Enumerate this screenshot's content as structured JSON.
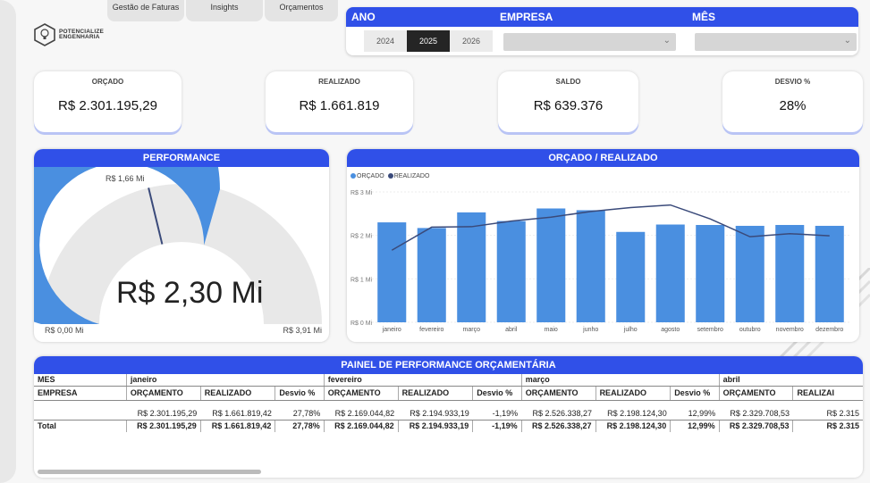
{
  "nav": {
    "tabs": [
      "Gestão de Faturas",
      "Insights",
      "Orçamentos"
    ]
  },
  "logo": {
    "line1": "POTENCIALIZE",
    "line2": "ENGENHARIA"
  },
  "filters": {
    "ano_label": "ANO",
    "empresa_label": "EMPRESA",
    "mes_label": "MÊS",
    "years": [
      "2024",
      "2025",
      "2026"
    ],
    "selected_year": "2025",
    "empresa_value": "",
    "mes_value": ""
  },
  "kpis": {
    "orcado": {
      "label": "ORÇADO",
      "value": "R$ 2.301.195,29"
    },
    "realizado": {
      "label": "REALIZADO",
      "value": "R$ 1.661.819"
    },
    "saldo": {
      "label": "SALDO",
      "value": "R$ 639.376"
    },
    "desvio": {
      "label": "DESVIO %",
      "value": "28%"
    }
  },
  "performance": {
    "title": "PERFORMANCE",
    "value_label": "R$ 2,30 Mi",
    "target_label": "R$ 1,66 Mi",
    "min_label": "R$ 0,00 Mi",
    "max_label": "R$ 3,91 Mi",
    "value": 2.3,
    "target": 1.66,
    "min": 0,
    "max": 3.91
  },
  "chart_data": {
    "type": "bar",
    "title": "ORÇADO / REALIZADO",
    "categories": [
      "janeiro",
      "fevereiro",
      "março",
      "abril",
      "maio",
      "junho",
      "julho",
      "agosto",
      "setembro",
      "outubro",
      "novembro",
      "dezembro"
    ],
    "series": [
      {
        "name": "ORÇADO",
        "kind": "bar",
        "color": "#4a8fe0",
        "values": [
          2.3,
          2.17,
          2.53,
          2.33,
          2.62,
          2.58,
          2.08,
          2.25,
          2.24,
          2.22,
          2.24,
          2.22
        ]
      },
      {
        "name": "REALIZADO",
        "kind": "line",
        "color": "#3a4a7a",
        "values": [
          1.66,
          2.19,
          2.2,
          2.33,
          2.42,
          2.55,
          2.64,
          2.7,
          2.38,
          1.97,
          2.04,
          1.99
        ]
      }
    ],
    "yticks": [
      "R$ 0 Mi",
      "R$ 1 Mi",
      "R$ 2 Mi",
      "R$ 3 Mi"
    ],
    "ylim": [
      0,
      3
    ],
    "legend": "top-left"
  },
  "table": {
    "title": "PAINEL DE PERFORMANCE ORÇAMENTÁRIA",
    "mes_label": "MES",
    "empresa_label": "EMPRESA",
    "total_label": "Total",
    "row_label": "",
    "col_headers": [
      "ORÇAMENTO",
      "REALIZADO",
      "Desvio %"
    ],
    "months": [
      {
        "name": "janeiro",
        "row": [
          "R$ 2.301.195,29",
          "R$ 1.661.819,42",
          "27,78%"
        ],
        "total": [
          "R$ 2.301.195,29",
          "R$ 1.661.819,42",
          "27,78%"
        ]
      },
      {
        "name": "fevereiro",
        "row": [
          "R$ 2.169.044,82",
          "R$ 2.194.933,19",
          "-1,19%"
        ],
        "total": [
          "R$ 2.169.044,82",
          "R$ 2.194.933,19",
          "-1,19%"
        ]
      },
      {
        "name": "março",
        "row": [
          "R$ 2.526.338,27",
          "R$ 2.198.124,30",
          "12,99%"
        ],
        "total": [
          "R$ 2.526.338,27",
          "R$ 2.198.124,30",
          "12,99%"
        ]
      },
      {
        "name": "abril",
        "row": [
          "R$ 2.329.708,53",
          "R$ 2.315",
          ""
        ],
        "total": [
          "R$ 2.329.708,53",
          "R$ 2.315",
          ""
        ],
        "headers": [
          "ORÇAMENTO",
          "REALIZAI"
        ]
      }
    ]
  }
}
